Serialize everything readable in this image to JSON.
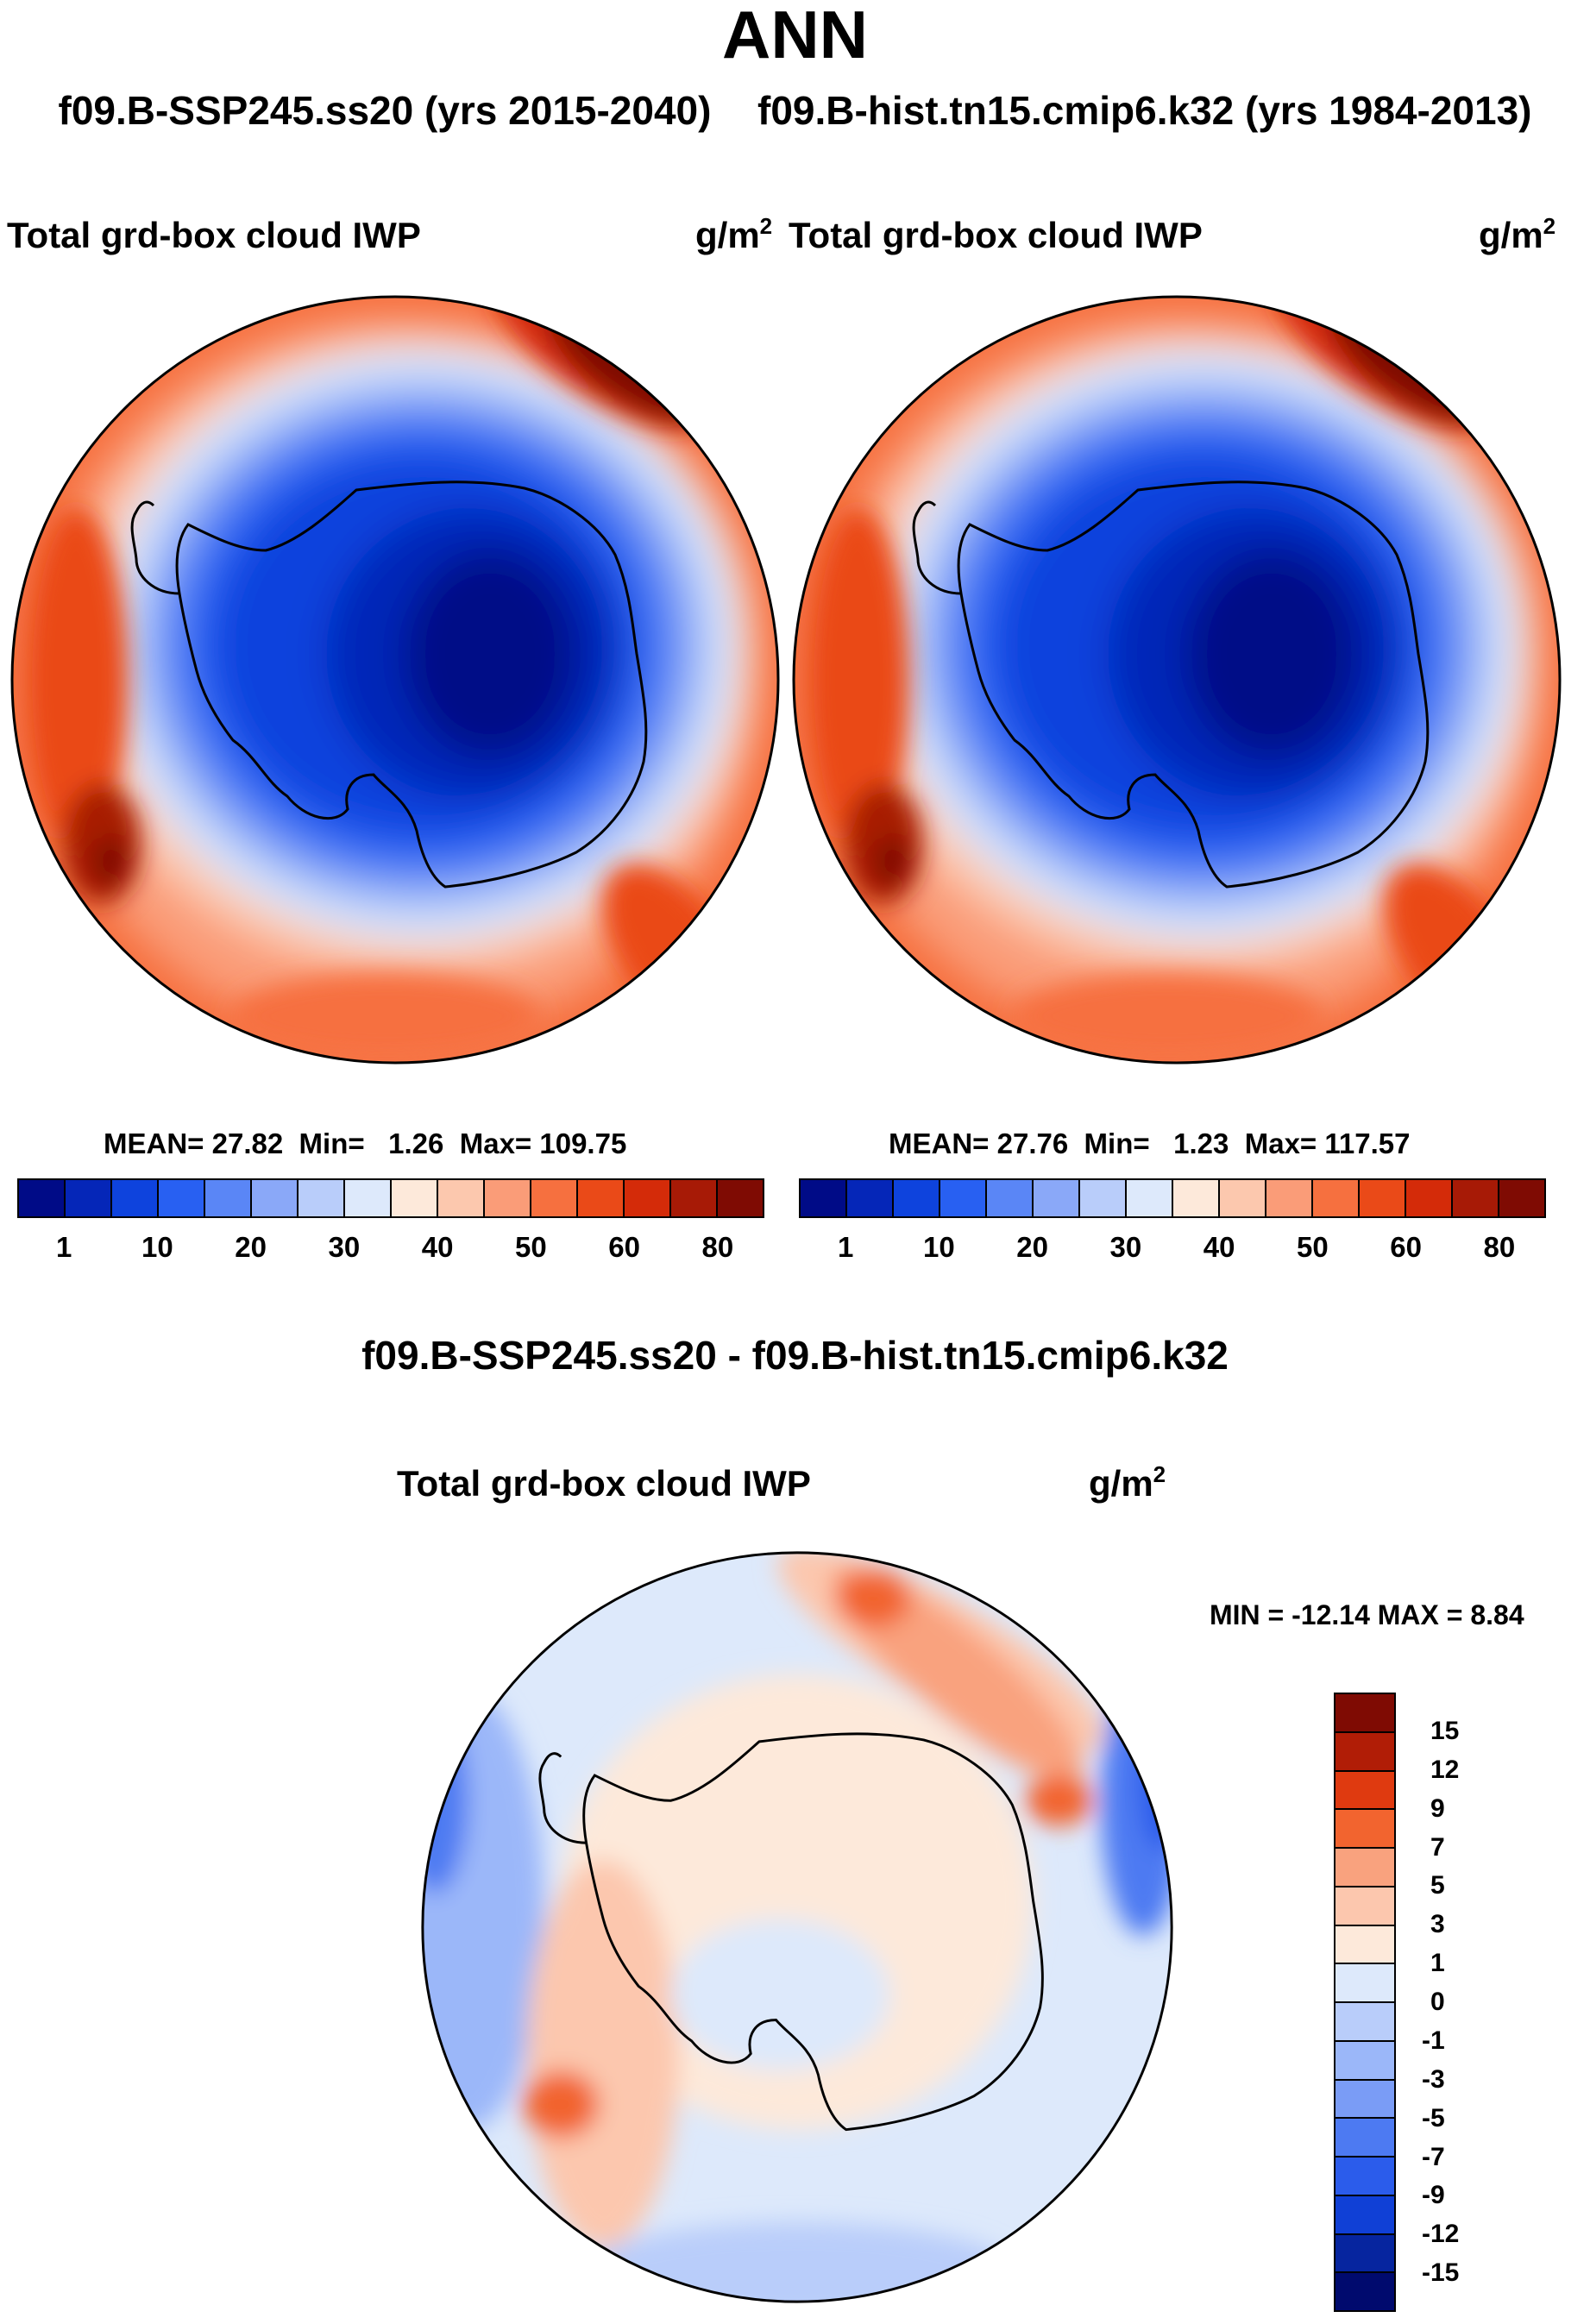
{
  "header": {
    "title": "ANN",
    "case_left": "f09.B-SSP245.ss20 (yrs 2015-2040)",
    "case_right": "f09.B-hist.tn15.cmip6.k32 (yrs 1984-2013)"
  },
  "panels": [
    {
      "variable": "Total grd-box cloud IWP",
      "units_base": "g/m",
      "units_exp": "2",
      "stats": {
        "mean_label": "MEAN=",
        "mean": "27.82",
        "min_label": "Min=",
        "min": "1.26",
        "max_label": "Max=",
        "max": "109.75"
      }
    },
    {
      "variable": "Total grd-box cloud IWP",
      "units_base": "g/m",
      "units_exp": "2",
      "stats": {
        "mean_label": "MEAN=",
        "mean": "27.76",
        "min_label": "Min=",
        "min": "1.23",
        "max_label": "Max=",
        "max": "117.57"
      }
    }
  ],
  "abs_colorbar": {
    "colors": [
      "#000b87",
      "#0526b8",
      "#0e43dd",
      "#2860f2",
      "#5a86f6",
      "#8aa8f8",
      "#b9cdfa",
      "#dde9fb",
      "#fde9da",
      "#fcc8ae",
      "#fa9c78",
      "#f6703f",
      "#ea4a18",
      "#d42b09",
      "#a71a06",
      "#7f0b03"
    ],
    "labels": [
      "1",
      "10",
      "20",
      "30",
      "40",
      "50",
      "60",
      "80"
    ]
  },
  "diff": {
    "title": "f09.B-SSP245.ss20 - f09.B-hist.tn15.cmip6.k32",
    "variable": "Total grd-box cloud IWP",
    "units_base": "g/m",
    "units_exp": "2",
    "minmax": "MIN = -12.14 MAX =   8.84"
  },
  "diff_colorbar": {
    "colors": [
      "#7f0b03",
      "#b11d06",
      "#df3a10",
      "#f2642f",
      "#f9a27e",
      "#fcc7ae",
      "#fde9da",
      "#dde9fb",
      "#b9cdfa",
      "#9bb7f9",
      "#7a9cf6",
      "#4d7af2",
      "#2b5ceb",
      "#1040d6",
      "#06259f",
      "#000a6e"
    ],
    "labels": [
      "15",
      "12",
      "9",
      "7",
      "5",
      "3",
      "1",
      "0",
      "-1",
      "-3",
      "-5",
      "-7",
      "-9",
      "-12",
      "-15"
    ]
  }
}
